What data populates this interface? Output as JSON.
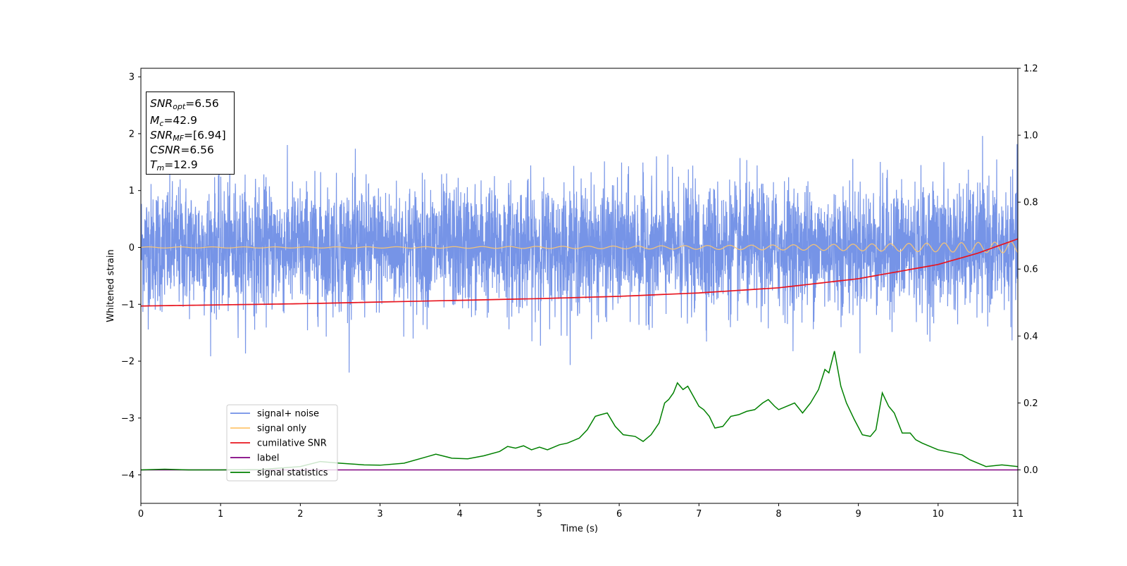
{
  "info_box": {
    "snr_opt": "=6.56",
    "mc": "=42.9",
    "snr_mf": "=[6.94]",
    "csnr": "=6.56",
    "tm": "=12.9"
  },
  "colors": {
    "noise": "#6f8ee6",
    "signal": "#ffc66e",
    "cumulative_snr": "#e8141e",
    "label": "#800080",
    "statistics": "#008000"
  },
  "chart_data": {
    "type": "line",
    "xlabel": "Time (s)",
    "ylabel": "Whitened strain",
    "ylabel_right": "",
    "xlim": [
      0,
      11
    ],
    "ylim": [
      -4.5,
      3.15
    ],
    "ylim_right": [
      -0.1,
      1.2
    ],
    "x_ticks": [
      "0",
      "1",
      "2",
      "3",
      "4",
      "5",
      "6",
      "7",
      "8",
      "9",
      "10",
      "11"
    ],
    "y_ticks": [
      "3",
      "2",
      "1",
      "0",
      "−1",
      "−2",
      "−3",
      "−4"
    ],
    "y_ticks_right": [
      "1.2",
      "1.0",
      "0.8",
      "0.6",
      "0.4",
      "0.2",
      "0.0"
    ],
    "legend_position": "lower-left",
    "series": [
      {
        "name": "signal+ noise",
        "axis": "left",
        "noise_std": 0.55,
        "range": [
          -2.2,
          2.15
        ]
      },
      {
        "name": "signal only",
        "axis": "left",
        "amplitude_start": 0.01,
        "amplitude_end": 0.1,
        "frequency_start": 2.5,
        "frequency_end": 5
      },
      {
        "name": "cumilative SNR",
        "axis": "left",
        "x": [
          0,
          1,
          2,
          3,
          4,
          5,
          6,
          7,
          8,
          9,
          10,
          10.5,
          11
        ],
        "y": [
          -1.03,
          -1.01,
          -0.99,
          -0.96,
          -0.93,
          -0.9,
          -0.86,
          -0.8,
          -0.71,
          -0.55,
          -0.3,
          -0.1,
          0.15
        ]
      },
      {
        "name": "label",
        "axis": "right",
        "x": [
          0,
          11
        ],
        "y": [
          0.0,
          0.0
        ]
      },
      {
        "name": "signal statistics",
        "axis": "right",
        "x": [
          0,
          0.3,
          0.6,
          1.0,
          1.5,
          2.0,
          2.25,
          2.5,
          2.8,
          3.0,
          3.3,
          3.6,
          3.7,
          3.9,
          4.1,
          4.3,
          4.5,
          4.6,
          4.7,
          4.8,
          4.9,
          5.0,
          5.1,
          5.25,
          5.35,
          5.5,
          5.6,
          5.7,
          5.77,
          5.85,
          5.95,
          6.05,
          6.2,
          6.3,
          6.4,
          6.5,
          6.57,
          6.62,
          6.68,
          6.73,
          6.8,
          6.86,
          6.93,
          7.0,
          7.06,
          7.13,
          7.2,
          7.3,
          7.4,
          7.5,
          7.6,
          7.7,
          7.8,
          7.87,
          7.95,
          8.0,
          8.1,
          8.2,
          8.3,
          8.4,
          8.5,
          8.58,
          8.63,
          8.7,
          8.78,
          8.85,
          8.95,
          9.05,
          9.15,
          9.22,
          9.3,
          9.38,
          9.45,
          9.55,
          9.65,
          9.72,
          9.8,
          9.9,
          10.0,
          10.1,
          10.2,
          10.3,
          10.4,
          10.6,
          10.8,
          11.0
        ],
        "y": [
          0.0,
          0.002,
          0.0,
          0.0,
          0.001,
          0.01,
          0.025,
          0.02,
          0.015,
          0.014,
          0.02,
          0.04,
          0.047,
          0.035,
          0.033,
          0.042,
          0.055,
          0.07,
          0.065,
          0.072,
          0.06,
          0.068,
          0.06,
          0.075,
          0.08,
          0.095,
          0.12,
          0.16,
          0.165,
          0.17,
          0.13,
          0.105,
          0.1,
          0.085,
          0.105,
          0.14,
          0.2,
          0.21,
          0.23,
          0.26,
          0.24,
          0.25,
          0.22,
          0.19,
          0.18,
          0.16,
          0.125,
          0.13,
          0.16,
          0.165,
          0.175,
          0.18,
          0.2,
          0.21,
          0.19,
          0.18,
          0.19,
          0.2,
          0.17,
          0.2,
          0.24,
          0.3,
          0.29,
          0.355,
          0.25,
          0.2,
          0.15,
          0.105,
          0.1,
          0.12,
          0.23,
          0.19,
          0.17,
          0.11,
          0.11,
          0.09,
          0.08,
          0.07,
          0.06,
          0.055,
          0.05,
          0.045,
          0.03,
          0.01,
          0.015,
          0.01
        ]
      }
    ]
  }
}
